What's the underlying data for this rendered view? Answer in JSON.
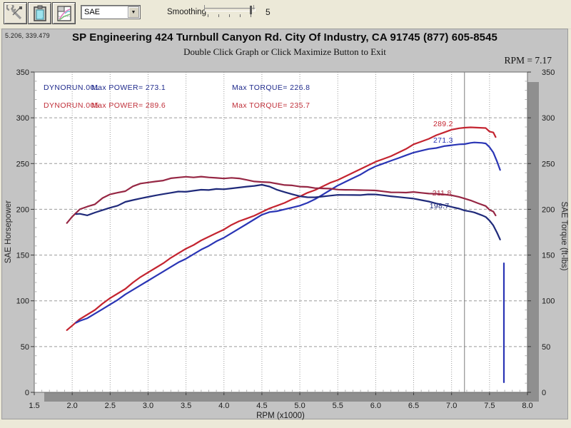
{
  "toolbar": {
    "buttons": [
      {
        "name": "tools-button"
      },
      {
        "name": "clipboard-button"
      },
      {
        "name": "graph-settings-button"
      }
    ],
    "correction": "SAE",
    "smoothing_label": "Smoothing",
    "smoothing_value": "5"
  },
  "header": {
    "cursor_coords": "5.206, 339.479",
    "title": "SP Engineering 424 Turnbull Canyon Rd. City Of Industry, CA 91745 (877) 605-8545",
    "subtitle": "Double Click Graph or Click Maximize Button to Exit",
    "cursor_rpm_readout": "RPM = 7.17"
  },
  "legend": {
    "rows": [
      {
        "run": "DYNORUN.001",
        "power": "Max POWER= 273.1",
        "torque": "Max TORQUE= 226.8",
        "color": "#1f2a8c"
      },
      {
        "run": "DYNORUN.005",
        "power": "Max POWER= 289.6",
        "torque": "Max TORQUE= 235.7",
        "color": "#c0303a"
      }
    ]
  },
  "chart_data": {
    "type": "line",
    "title": "SP Engineering 424 Turnbull Canyon Rd. City Of Industry, CA 91745 (877) 605-8545",
    "grid": true,
    "legend_position": "top-inside",
    "x_axis": {
      "label": "RPM (x1000)",
      "min": 1.5,
      "max": 8.0,
      "tick_step": 0.5
    },
    "y_left": {
      "label": "SAE Horsepower",
      "min": 0,
      "max": 350,
      "tick_step": 50
    },
    "y_right": {
      "label": "SAE Torque (ft-lbs)",
      "min": 0,
      "max": 350,
      "tick_step": 50
    },
    "colors": {
      "power_run001": "#2a35b5",
      "power_run005": "#c42430",
      "torque_run001": "#1f2a7a",
      "torque_run005": "#962744",
      "cursor_line": "#7d7d7d",
      "gridline": "#9a9a9a",
      "plot_shadow": "#8f8f8f"
    },
    "cursor": {
      "rpm": 7.17,
      "labels": [
        {
          "text": "289.2",
          "color": "#c42430",
          "end_rpm": 7.02,
          "value": 290.7
        },
        {
          "text": "271.3",
          "color": "#2a35b5",
          "end_rpm": 7.02,
          "value": 272.8
        },
        {
          "text": "211.8",
          "color": "#a82a40",
          "end_rpm": 7.0,
          "value": 215.1
        },
        {
          "text": "198.7",
          "color": "#1f2a7a",
          "end_rpm": 6.97,
          "value": 201.1
        }
      ]
    },
    "series": [
      {
        "id": "power-run005",
        "name": "DYNORUN.005 SAE Horsepower",
        "axis": "left",
        "color": "#c42430",
        "max": 289.6,
        "points": [
          [
            1.93,
            68
          ],
          [
            2.0,
            73
          ],
          [
            2.1,
            80
          ],
          [
            2.2,
            85
          ],
          [
            2.3,
            90
          ],
          [
            2.4,
            97
          ],
          [
            2.5,
            103
          ],
          [
            2.6,
            108
          ],
          [
            2.7,
            113
          ],
          [
            2.8,
            120
          ],
          [
            2.9,
            126
          ],
          [
            3.0,
            131
          ],
          [
            3.1,
            136
          ],
          [
            3.2,
            141
          ],
          [
            3.3,
            147
          ],
          [
            3.4,
            152
          ],
          [
            3.5,
            157
          ],
          [
            3.6,
            161
          ],
          [
            3.7,
            166
          ],
          [
            3.8,
            170
          ],
          [
            3.9,
            174
          ],
          [
            4.0,
            178
          ],
          [
            4.1,
            183
          ],
          [
            4.2,
            187
          ],
          [
            4.3,
            190
          ],
          [
            4.4,
            193
          ],
          [
            4.5,
            197
          ],
          [
            4.6,
            201
          ],
          [
            4.7,
            204
          ],
          [
            4.8,
            207
          ],
          [
            4.9,
            211
          ],
          [
            5.0,
            214
          ],
          [
            5.1,
            218
          ],
          [
            5.2,
            221
          ],
          [
            5.3,
            225
          ],
          [
            5.4,
            229
          ],
          [
            5.5,
            232
          ],
          [
            5.6,
            236
          ],
          [
            5.7,
            240
          ],
          [
            5.8,
            244
          ],
          [
            5.9,
            248
          ],
          [
            6.0,
            252
          ],
          [
            6.1,
            255
          ],
          [
            6.2,
            258
          ],
          [
            6.3,
            262
          ],
          [
            6.4,
            266
          ],
          [
            6.5,
            271
          ],
          [
            6.6,
            274
          ],
          [
            6.7,
            277
          ],
          [
            6.8,
            281
          ],
          [
            6.9,
            284
          ],
          [
            7.0,
            287
          ],
          [
            7.1,
            288.6
          ],
          [
            7.17,
            289.2
          ],
          [
            7.25,
            289.6
          ],
          [
            7.35,
            289.2
          ],
          [
            7.45,
            288.8
          ],
          [
            7.5,
            285
          ],
          [
            7.55,
            284
          ],
          [
            7.58,
            279
          ]
        ]
      },
      {
        "id": "power-run001",
        "name": "DYNORUN.001 SAE Horsepower",
        "axis": "left",
        "color": "#2a35b5",
        "max": 273.1,
        "points": [
          [
            2.05,
            76
          ],
          [
            2.1,
            78
          ],
          [
            2.2,
            81
          ],
          [
            2.3,
            86
          ],
          [
            2.4,
            91
          ],
          [
            2.5,
            96
          ],
          [
            2.6,
            101
          ],
          [
            2.7,
            107
          ],
          [
            2.8,
            112
          ],
          [
            2.9,
            117
          ],
          [
            3.0,
            122
          ],
          [
            3.1,
            127
          ],
          [
            3.2,
            132
          ],
          [
            3.3,
            137
          ],
          [
            3.4,
            142
          ],
          [
            3.5,
            146
          ],
          [
            3.6,
            151
          ],
          [
            3.7,
            156
          ],
          [
            3.8,
            160
          ],
          [
            3.9,
            165
          ],
          [
            4.0,
            169
          ],
          [
            4.1,
            174
          ],
          [
            4.2,
            179
          ],
          [
            4.3,
            184
          ],
          [
            4.4,
            189
          ],
          [
            4.5,
            194
          ],
          [
            4.6,
            197
          ],
          [
            4.7,
            198
          ],
          [
            4.8,
            200
          ],
          [
            4.9,
            202
          ],
          [
            5.0,
            204
          ],
          [
            5.1,
            207
          ],
          [
            5.2,
            211
          ],
          [
            5.3,
            216
          ],
          [
            5.4,
            221
          ],
          [
            5.5,
            226
          ],
          [
            5.6,
            230
          ],
          [
            5.7,
            234
          ],
          [
            5.8,
            238
          ],
          [
            5.9,
            243
          ],
          [
            6.0,
            247
          ],
          [
            6.1,
            250
          ],
          [
            6.2,
            253
          ],
          [
            6.3,
            256
          ],
          [
            6.4,
            259
          ],
          [
            6.5,
            262
          ],
          [
            6.6,
            264
          ],
          [
            6.7,
            266
          ],
          [
            6.8,
            267
          ],
          [
            6.9,
            269
          ],
          [
            7.0,
            270
          ],
          [
            7.1,
            271
          ],
          [
            7.17,
            271.3
          ],
          [
            7.25,
            272.6
          ],
          [
            7.3,
            273.1
          ],
          [
            7.4,
            272.6
          ],
          [
            7.45,
            272
          ],
          [
            7.5,
            268
          ],
          [
            7.55,
            262
          ],
          [
            7.6,
            252
          ],
          [
            7.64,
            243
          ]
        ]
      },
      {
        "id": "torque-run005",
        "name": "DYNORUN.005 SAE Torque",
        "axis": "right",
        "color": "#962744",
        "max": 235.7,
        "points": [
          [
            1.93,
            185
          ],
          [
            2.0,
            192
          ],
          [
            2.1,
            200
          ],
          [
            2.2,
            203
          ],
          [
            2.3,
            205.5
          ],
          [
            2.4,
            212.3
          ],
          [
            2.5,
            216.4
          ],
          [
            2.6,
            218.2
          ],
          [
            2.7,
            219.8
          ],
          [
            2.8,
            225.1
          ],
          [
            2.9,
            228.2
          ],
          [
            3.0,
            229.3
          ],
          [
            3.1,
            230.4
          ],
          [
            3.2,
            231.4
          ],
          [
            3.3,
            233.9
          ],
          [
            3.4,
            234.8
          ],
          [
            3.5,
            235.6
          ],
          [
            3.6,
            234.9
          ],
          [
            3.7,
            235.7
          ],
          [
            3.8,
            234.9
          ],
          [
            3.9,
            234.3
          ],
          [
            4.0,
            233.7
          ],
          [
            4.1,
            234.4
          ],
          [
            4.2,
            233.8
          ],
          [
            4.3,
            232.1
          ],
          [
            4.4,
            230.4
          ],
          [
            4.5,
            229.9
          ],
          [
            4.6,
            229.5
          ],
          [
            4.7,
            228.0
          ],
          [
            4.8,
            226.5
          ],
          [
            4.9,
            226.1
          ],
          [
            5.0,
            224.8
          ],
          [
            5.1,
            224.5
          ],
          [
            5.2,
            223.2
          ],
          [
            5.3,
            222.9
          ],
          [
            5.4,
            222.6
          ],
          [
            5.5,
            221.5
          ],
          [
            5.6,
            221.3
          ],
          [
            5.7,
            221.2
          ],
          [
            5.8,
            221.0
          ],
          [
            5.9,
            220.8
          ],
          [
            6.0,
            220.6
          ],
          [
            6.1,
            219.6
          ],
          [
            6.2,
            218.6
          ],
          [
            6.3,
            218.5
          ],
          [
            6.4,
            218.3
          ],
          [
            6.5,
            219.0
          ],
          [
            6.6,
            218.0
          ],
          [
            6.7,
            217.2
          ],
          [
            6.8,
            217.0
          ],
          [
            6.9,
            216.2
          ],
          [
            7.0,
            215.3
          ],
          [
            7.1,
            213.5
          ],
          [
            7.17,
            211.8
          ],
          [
            7.25,
            209.8
          ],
          [
            7.35,
            206.6
          ],
          [
            7.45,
            203.6
          ],
          [
            7.5,
            199.5
          ],
          [
            7.55,
            197.5
          ],
          [
            7.58,
            193.3
          ]
        ]
      },
      {
        "id": "torque-run001",
        "name": "DYNORUN.001 SAE Torque",
        "axis": "right",
        "color": "#1f2a7a",
        "max": 226.8,
        "points": [
          [
            2.05,
            194.7
          ],
          [
            2.1,
            195.1
          ],
          [
            2.2,
            193.4
          ],
          [
            2.3,
            196.4
          ],
          [
            2.4,
            199.1
          ],
          [
            2.5,
            201.7
          ],
          [
            2.6,
            204.0
          ],
          [
            2.7,
            208.1
          ],
          [
            2.8,
            210.1
          ],
          [
            2.9,
            211.9
          ],
          [
            3.0,
            213.6
          ],
          [
            3.1,
            215.2
          ],
          [
            3.2,
            216.6
          ],
          [
            3.3,
            218.0
          ],
          [
            3.4,
            219.4
          ],
          [
            3.5,
            219.1
          ],
          [
            3.6,
            220.3
          ],
          [
            3.7,
            221.4
          ],
          [
            3.8,
            221.1
          ],
          [
            3.9,
            222.2
          ],
          [
            4.0,
            221.9
          ],
          [
            4.1,
            222.9
          ],
          [
            4.2,
            223.8
          ],
          [
            4.3,
            224.8
          ],
          [
            4.4,
            225.6
          ],
          [
            4.5,
            226.8
          ],
          [
            4.6,
            224.9
          ],
          [
            4.7,
            221.3
          ],
          [
            4.8,
            218.8
          ],
          [
            4.9,
            216.5
          ],
          [
            5.0,
            214.3
          ],
          [
            5.1,
            213.2
          ],
          [
            5.2,
            213.1
          ],
          [
            5.3,
            214.0
          ],
          [
            5.4,
            214.9
          ],
          [
            5.5,
            215.8
          ],
          [
            5.6,
            215.7
          ],
          [
            5.7,
            215.6
          ],
          [
            5.8,
            215.5
          ],
          [
            5.9,
            216.3
          ],
          [
            6.0,
            216.2
          ],
          [
            6.1,
            215.3
          ],
          [
            6.2,
            214.3
          ],
          [
            6.3,
            213.4
          ],
          [
            6.4,
            212.6
          ],
          [
            6.5,
            211.7
          ],
          [
            6.6,
            210.1
          ],
          [
            6.7,
            208.5
          ],
          [
            6.8,
            206.3
          ],
          [
            6.9,
            204.7
          ],
          [
            7.0,
            202.6
          ],
          [
            7.1,
            200.7
          ],
          [
            7.17,
            198.7
          ],
          [
            7.25,
            197.5
          ],
          [
            7.3,
            196.6
          ],
          [
            7.4,
            193.5
          ],
          [
            7.45,
            191.7
          ],
          [
            7.5,
            187.7
          ],
          [
            7.55,
            182.3
          ],
          [
            7.6,
            174.2
          ],
          [
            7.64,
            167.0
          ]
        ]
      },
      {
        "id": "run001-dropout",
        "name": "DYNORUN.001 data dropout",
        "axis": "left",
        "color": "#2a35b5",
        "points": [
          [
            7.69,
            141
          ],
          [
            7.69,
            11
          ]
        ]
      }
    ]
  }
}
